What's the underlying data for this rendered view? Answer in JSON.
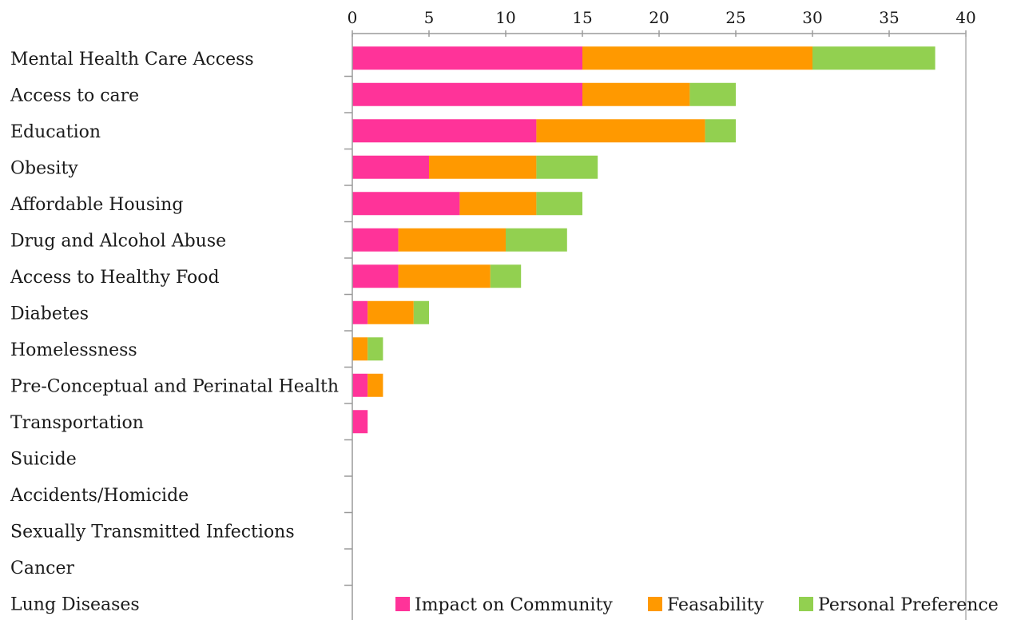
{
  "chart_data": {
    "type": "bar",
    "orientation": "horizontal",
    "stacked": true,
    "title": "",
    "xlabel": "",
    "ylabel": "",
    "xlim": [
      0,
      40
    ],
    "x_ticks": [
      "0",
      "5",
      "10",
      "15",
      "20",
      "25",
      "30",
      "35",
      "40"
    ],
    "x_axis_position": "top",
    "grid": false,
    "legend_position": "bottom-right",
    "categories": [
      "Mental Health Care Access",
      "Access to care",
      "Education",
      "Obesity",
      "Affordable Housing",
      "Drug and Alcohol Abuse",
      "Access to Healthy Food",
      "Diabetes",
      "Homelessness",
      "Pre-Conceptual and Perinatal Health",
      "Transportation",
      "Suicide",
      "Accidents/Homicide",
      "Sexually Transmitted Infections",
      "Cancer",
      "Lung Diseases"
    ],
    "series": [
      {
        "name": "Impact on Community",
        "color": "#ff3399",
        "values": [
          15,
          15,
          12,
          5,
          7,
          3,
          3,
          1,
          0,
          1,
          1,
          0,
          0,
          0,
          0,
          0
        ]
      },
      {
        "name": "Feasability",
        "color": "#ff9900",
        "values": [
          15,
          7,
          11,
          7,
          5,
          7,
          6,
          3,
          1,
          1,
          0,
          0,
          0,
          0,
          0,
          0
        ]
      },
      {
        "name": "Personal Preference",
        "color": "#92d050",
        "values": [
          8,
          3,
          2,
          4,
          3,
          4,
          2,
          1,
          1,
          0,
          0,
          0,
          0,
          0,
          0,
          0
        ]
      }
    ]
  }
}
